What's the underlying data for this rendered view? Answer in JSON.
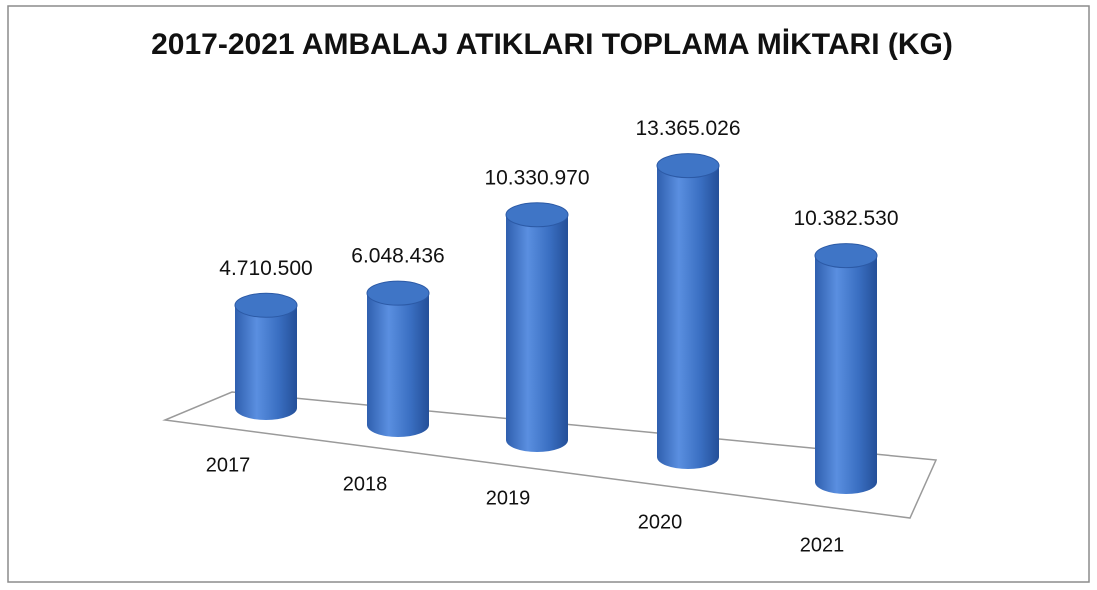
{
  "chart_data": {
    "type": "bar3d",
    "title": "2017-2021 AMBALAJ ATIKLARI TOPLAMA MİKTARI (KG)",
    "categories": [
      "2017",
      "2018",
      "2019",
      "2020",
      "2021"
    ],
    "values": [
      4710500,
      6048436,
      10330970,
      13365026,
      10382530
    ],
    "value_labels": [
      "4.710.500",
      "6.048.436",
      "10.330.970",
      "13.365.026",
      "10.382.530"
    ],
    "color": "#3f75c6"
  }
}
